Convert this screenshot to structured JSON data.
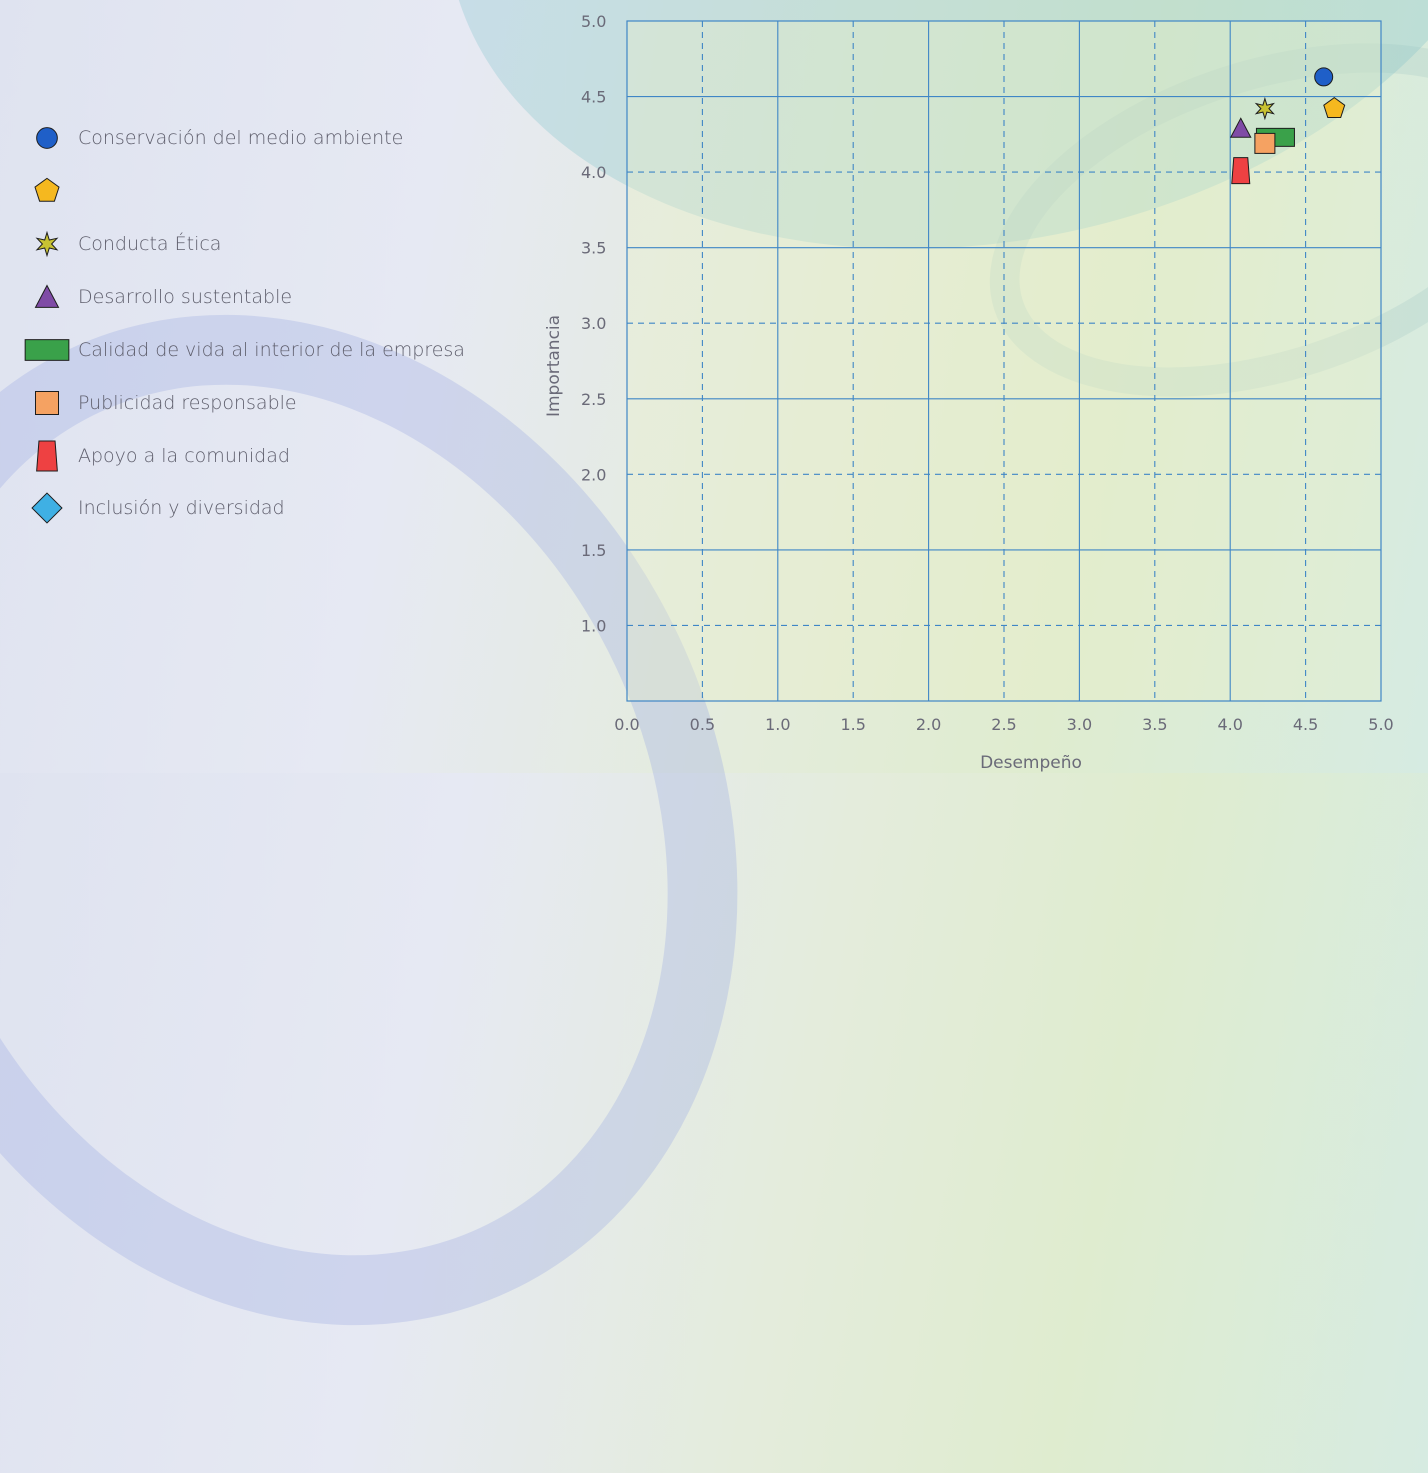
{
  "chart_data": {
    "type": "scatter",
    "title": "",
    "xlabel": "Desempeño",
    "ylabel": "Importancia",
    "xlim": [
      0.0,
      5.0
    ],
    "ylim": [
      0.5,
      5.0
    ],
    "x_ticks": [
      "0.0",
      "0.5",
      "1.0",
      "1.5",
      "2.0",
      "2.5",
      "3.0",
      "3.5",
      "4.0",
      "4.5",
      "5.0"
    ],
    "y_ticks": [
      "1.0",
      "1.5",
      "2.0",
      "2.5",
      "3.0",
      "3.5",
      "4.0",
      "4.5",
      "5.0"
    ],
    "grid": true,
    "legend_position": "left",
    "series": [
      {
        "name": "Conservación del medio ambiente",
        "marker": "circle",
        "color": "#1f5fc8",
        "x": 4.62,
        "y": 4.63
      },
      {
        "name": "",
        "marker": "pentagon",
        "color": "#f5b81f",
        "x": 4.69,
        "y": 4.42
      },
      {
        "name": "Conducta Ética",
        "marker": "star",
        "color": "#c8c232",
        "x": 4.23,
        "y": 4.42
      },
      {
        "name": "Desarrollo sustentable",
        "marker": "triangle",
        "color": "#7f4ba6",
        "x": 4.07,
        "y": 4.29
      },
      {
        "name": "Calidad de vida al interior de la empresa",
        "marker": "rectangle",
        "color": "#3aa14a",
        "x": 4.3,
        "y": 4.23
      },
      {
        "name": "Publicidad responsable",
        "marker": "square",
        "color": "#f5a262",
        "x": 4.23,
        "y": 4.19
      },
      {
        "name": "Apoyo a la comunidad",
        "marker": "trapezoid",
        "color": "#ee4142",
        "x": 4.07,
        "y": 4.01
      },
      {
        "name": "Inclusión y diversidad",
        "marker": "diamond",
        "color": "#3fb0e4",
        "x": null,
        "y": null
      }
    ]
  }
}
